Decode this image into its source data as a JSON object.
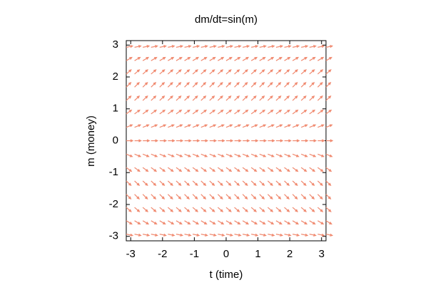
{
  "chart_data": {
    "type": "vector_field",
    "title": "dm/dt=sin(m)",
    "xlabel": "t (time)",
    "ylabel": "m (money)",
    "x": [
      -3.14,
      -2.88,
      -2.62,
      -2.36,
      -2.09,
      -1.83,
      -1.57,
      -1.31,
      -1.05,
      -0.79,
      -0.52,
      -0.26,
      0,
      0.26,
      0.52,
      0.79,
      1.05,
      1.31,
      1.57,
      1.83,
      2.09,
      2.36,
      2.62,
      2.88,
      3.14
    ],
    "m": [
      -2.93,
      -2.51,
      -2.09,
      -1.68,
      -1.26,
      -0.84,
      -0.42,
      0,
      0.42,
      0.84,
      1.26,
      1.68,
      2.09,
      2.51,
      2.93
    ],
    "slopes": [
      -0.21,
      -0.59,
      -0.87,
      -0.99,
      -0.95,
      -0.74,
      -0.41,
      0,
      0.41,
      0.74,
      0.95,
      0.99,
      0.87,
      0.59,
      0.21
    ],
    "color": "#f08a70",
    "xlim": [
      -3.14,
      3.14
    ],
    "ylim": [
      -3.14,
      3.14
    ],
    "xticks": [
      -3,
      -2,
      -1,
      0,
      1,
      2,
      3
    ],
    "yticks": [
      -3,
      -2,
      -1,
      0,
      1,
      2,
      3
    ]
  }
}
